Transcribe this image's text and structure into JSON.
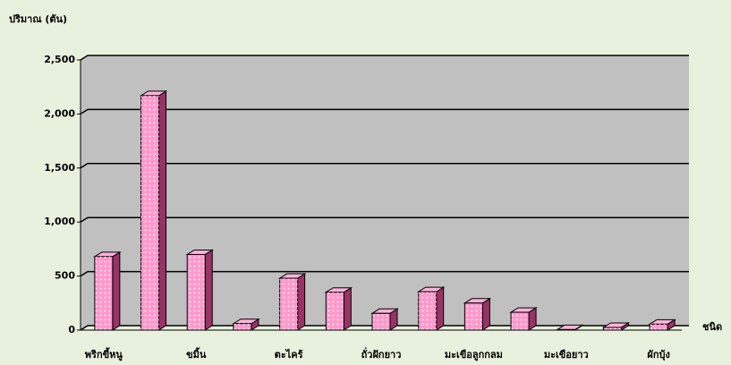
{
  "chart_data": {
    "type": "bar3d",
    "y_label": "ปริมาณ (ตัน)",
    "x_label": "ชนิด",
    "categories": [
      "พริกขี้หนู",
      null,
      "ขมิ้น",
      null,
      "ตะไคร้",
      null,
      "ถั่วฝักยาว",
      null,
      "มะเขือลูกกลม",
      null,
      "มะเขือยาว",
      null,
      "ผักบุ้ง"
    ],
    "values": [
      680,
      2170,
      700,
      60,
      480,
      350,
      155,
      355,
      250,
      165,
      5,
      25,
      55
    ],
    "color": "#ff99cc",
    "ylim": [
      0,
      2500
    ],
    "yticks": [
      0,
      {
        "value": 500,
        "label": "500"
      },
      {
        "value": 1000,
        "label": "1,000"
      },
      {
        "value": 1500,
        "label": "1,500"
      },
      {
        "value": 2000,
        "label": "2,000"
      },
      {
        "value": 2500,
        "label": "2,500"
      }
    ],
    "grid": true
  }
}
